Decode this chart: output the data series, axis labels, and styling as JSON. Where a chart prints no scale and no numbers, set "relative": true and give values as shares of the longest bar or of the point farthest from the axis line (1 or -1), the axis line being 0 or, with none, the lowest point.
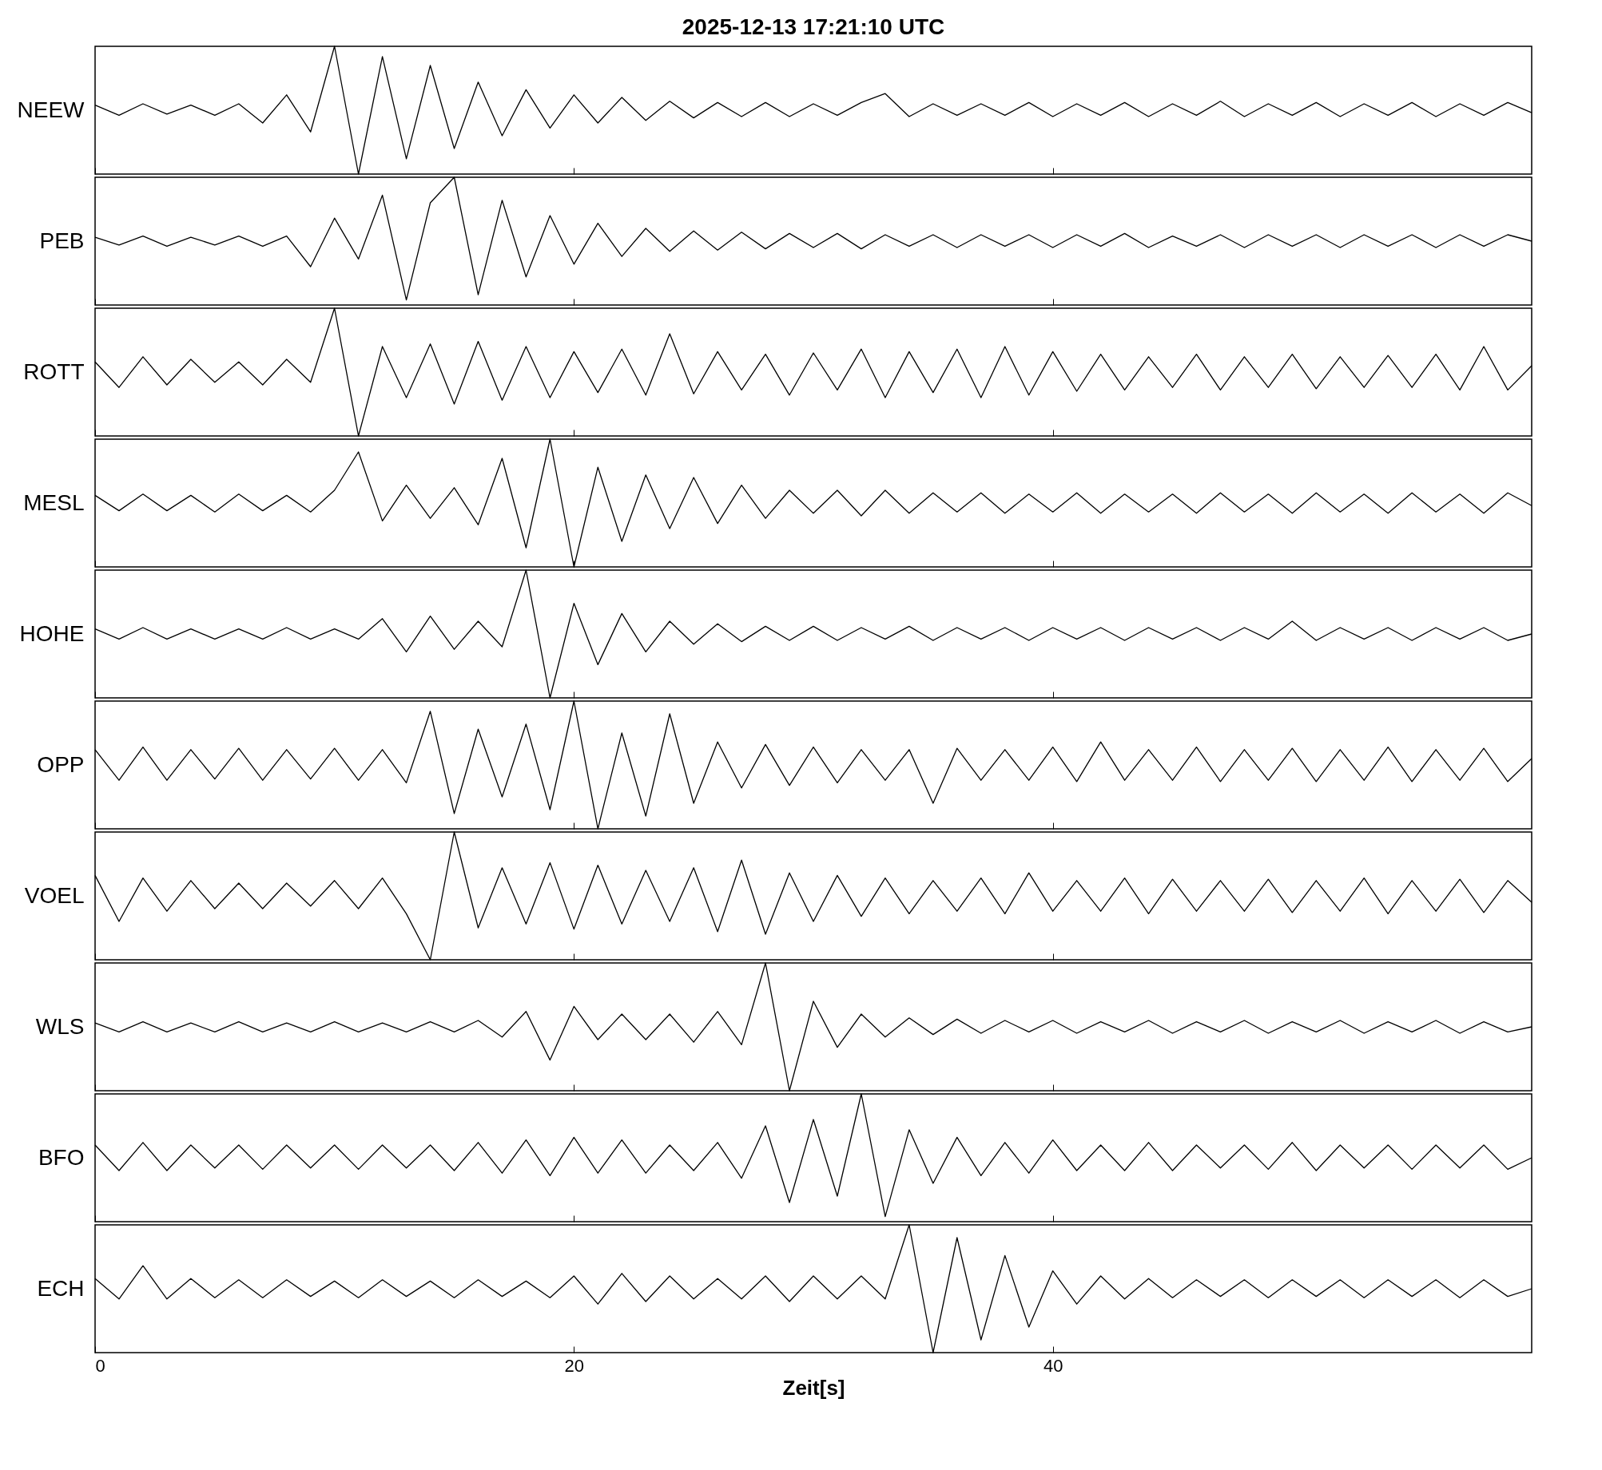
{
  "chart_data": [
    {
      "type": "line",
      "title": "2025-12-13  17:21:10 UTC",
      "ylabel": "NEEW",
      "relative": true,
      "tick_labels": false,
      "xlim": [
        0,
        60
      ],
      "xticks": [
        0,
        20,
        40
      ],
      "x": [
        0,
        1,
        2,
        3,
        4,
        5,
        6,
        7,
        8,
        9,
        10,
        11,
        12,
        13,
        14,
        15,
        16,
        17,
        18,
        19,
        20,
        21,
        22,
        23,
        24,
        25,
        26,
        27,
        28,
        29,
        30,
        31,
        32,
        33,
        34,
        35,
        36,
        37,
        38,
        39,
        40,
        41,
        42,
        43,
        44,
        45,
        46,
        47,
        48,
        49,
        50,
        51,
        52,
        53,
        54,
        55,
        56,
        57,
        58,
        59,
        60
      ],
      "series": [
        {
          "color": "#000000",
          "values": [
            0.54,
            0.46,
            0.55,
            0.47,
            0.54,
            0.46,
            0.55,
            0.4,
            0.62,
            0.33,
            1.0,
            0.0,
            0.92,
            0.12,
            0.85,
            0.2,
            0.72,
            0.3,
            0.66,
            0.36,
            0.62,
            0.4,
            0.6,
            0.42,
            0.57,
            0.44,
            0.56,
            0.45,
            0.56,
            0.45,
            0.55,
            0.46,
            0.56,
            0.63,
            0.45,
            0.55,
            0.46,
            0.55,
            0.46,
            0.56,
            0.45,
            0.55,
            0.46,
            0.56,
            0.45,
            0.55,
            0.46,
            0.57,
            0.45,
            0.55,
            0.46,
            0.56,
            0.45,
            0.55,
            0.46,
            0.56,
            0.45,
            0.55,
            0.46,
            0.56,
            0.48
          ]
        }
      ]
    },
    {
      "type": "line",
      "ylabel": "PEB",
      "relative": true,
      "tick_labels": false,
      "xlim": [
        0,
        60
      ],
      "xticks": [
        0,
        20,
        40
      ],
      "x": [
        0,
        1,
        2,
        3,
        4,
        5,
        6,
        7,
        8,
        9,
        10,
        11,
        12,
        13,
        14,
        15,
        16,
        17,
        18,
        19,
        20,
        21,
        22,
        23,
        24,
        25,
        26,
        27,
        28,
        29,
        30,
        31,
        32,
        33,
        34,
        35,
        36,
        37,
        38,
        39,
        40,
        41,
        42,
        43,
        44,
        45,
        46,
        47,
        48,
        49,
        50,
        51,
        52,
        53,
        54,
        55,
        56,
        57,
        58,
        59,
        60
      ],
      "series": [
        {
          "color": "#000000",
          "values": [
            0.53,
            0.47,
            0.54,
            0.46,
            0.53,
            0.47,
            0.54,
            0.46,
            0.54,
            0.3,
            0.68,
            0.36,
            0.86,
            0.04,
            0.8,
            1.0,
            0.08,
            0.82,
            0.22,
            0.7,
            0.32,
            0.64,
            0.38,
            0.6,
            0.42,
            0.58,
            0.43,
            0.57,
            0.44,
            0.56,
            0.45,
            0.56,
            0.44,
            0.55,
            0.46,
            0.55,
            0.45,
            0.55,
            0.46,
            0.55,
            0.45,
            0.55,
            0.46,
            0.56,
            0.45,
            0.54,
            0.46,
            0.55,
            0.45,
            0.55,
            0.46,
            0.55,
            0.45,
            0.55,
            0.46,
            0.55,
            0.45,
            0.55,
            0.46,
            0.55,
            0.5
          ]
        }
      ]
    },
    {
      "type": "line",
      "ylabel": "ROTT",
      "relative": true,
      "tick_labels": false,
      "xlim": [
        0,
        60
      ],
      "xticks": [
        0,
        20,
        40
      ],
      "x": [
        0,
        1,
        2,
        3,
        4,
        5,
        6,
        7,
        8,
        9,
        10,
        11,
        12,
        13,
        14,
        15,
        16,
        17,
        18,
        19,
        20,
        21,
        22,
        23,
        24,
        25,
        26,
        27,
        28,
        29,
        30,
        31,
        32,
        33,
        34,
        35,
        36,
        37,
        38,
        39,
        40,
        41,
        42,
        43,
        44,
        45,
        46,
        47,
        48,
        49,
        50,
        51,
        52,
        53,
        54,
        55,
        56,
        57,
        58,
        59,
        60
      ],
      "series": [
        {
          "color": "#000000",
          "values": [
            0.58,
            0.38,
            0.62,
            0.4,
            0.6,
            0.42,
            0.58,
            0.4,
            0.6,
            0.42,
            1.0,
            0.0,
            0.7,
            0.3,
            0.72,
            0.25,
            0.74,
            0.28,
            0.7,
            0.3,
            0.66,
            0.34,
            0.68,
            0.32,
            0.8,
            0.33,
            0.66,
            0.36,
            0.64,
            0.32,
            0.65,
            0.36,
            0.68,
            0.3,
            0.66,
            0.34,
            0.68,
            0.3,
            0.7,
            0.32,
            0.66,
            0.35,
            0.64,
            0.36,
            0.62,
            0.38,
            0.64,
            0.36,
            0.62,
            0.38,
            0.64,
            0.37,
            0.62,
            0.38,
            0.63,
            0.38,
            0.64,
            0.36,
            0.7,
            0.36,
            0.55
          ]
        }
      ]
    },
    {
      "type": "line",
      "ylabel": "MESL",
      "relative": true,
      "tick_labels": false,
      "xlim": [
        0,
        60
      ],
      "xticks": [
        0,
        20,
        40
      ],
      "x": [
        0,
        1,
        2,
        3,
        4,
        5,
        6,
        7,
        8,
        9,
        10,
        11,
        12,
        13,
        14,
        15,
        16,
        17,
        18,
        19,
        20,
        21,
        22,
        23,
        24,
        25,
        26,
        27,
        28,
        29,
        30,
        31,
        32,
        33,
        34,
        35,
        36,
        37,
        38,
        39,
        40,
        41,
        42,
        43,
        44,
        45,
        46,
        47,
        48,
        49,
        50,
        51,
        52,
        53,
        54,
        55,
        56,
        57,
        58,
        59,
        60
      ],
      "series": [
        {
          "color": "#000000",
          "values": [
            0.56,
            0.44,
            0.57,
            0.44,
            0.56,
            0.43,
            0.57,
            0.44,
            0.56,
            0.43,
            0.6,
            0.9,
            0.36,
            0.64,
            0.38,
            0.62,
            0.33,
            0.85,
            0.15,
            1.0,
            0.0,
            0.78,
            0.2,
            0.72,
            0.3,
            0.7,
            0.34,
            0.64,
            0.38,
            0.6,
            0.42,
            0.6,
            0.4,
            0.6,
            0.42,
            0.58,
            0.43,
            0.58,
            0.42,
            0.57,
            0.43,
            0.58,
            0.42,
            0.57,
            0.43,
            0.57,
            0.42,
            0.58,
            0.43,
            0.57,
            0.42,
            0.58,
            0.43,
            0.57,
            0.42,
            0.58,
            0.43,
            0.57,
            0.42,
            0.58,
            0.48
          ]
        }
      ]
    },
    {
      "type": "line",
      "ylabel": "HOHE",
      "relative": true,
      "tick_labels": false,
      "xlim": [
        0,
        60
      ],
      "xticks": [
        0,
        20,
        40
      ],
      "x": [
        0,
        1,
        2,
        3,
        4,
        5,
        6,
        7,
        8,
        9,
        10,
        11,
        12,
        13,
        14,
        15,
        16,
        17,
        18,
        19,
        20,
        21,
        22,
        23,
        24,
        25,
        26,
        27,
        28,
        29,
        30,
        31,
        32,
        33,
        34,
        35,
        36,
        37,
        38,
        39,
        40,
        41,
        42,
        43,
        44,
        45,
        46,
        47,
        48,
        49,
        50,
        51,
        52,
        53,
        54,
        55,
        56,
        57,
        58,
        59,
        60
      ],
      "series": [
        {
          "color": "#000000",
          "values": [
            0.54,
            0.46,
            0.55,
            0.46,
            0.54,
            0.46,
            0.54,
            0.46,
            0.55,
            0.46,
            0.54,
            0.46,
            0.62,
            0.36,
            0.64,
            0.38,
            0.6,
            0.4,
            1.0,
            0.0,
            0.74,
            0.26,
            0.66,
            0.36,
            0.6,
            0.42,
            0.58,
            0.44,
            0.56,
            0.45,
            0.56,
            0.45,
            0.55,
            0.46,
            0.56,
            0.45,
            0.55,
            0.46,
            0.55,
            0.45,
            0.55,
            0.46,
            0.55,
            0.45,
            0.55,
            0.46,
            0.55,
            0.45,
            0.55,
            0.46,
            0.6,
            0.45,
            0.55,
            0.46,
            0.55,
            0.45,
            0.55,
            0.46,
            0.55,
            0.45,
            0.5
          ]
        }
      ]
    },
    {
      "type": "line",
      "ylabel": "OPP",
      "relative": true,
      "tick_labels": false,
      "xlim": [
        0,
        60
      ],
      "xticks": [
        0,
        20,
        40
      ],
      "x": [
        0,
        1,
        2,
        3,
        4,
        5,
        6,
        7,
        8,
        9,
        10,
        11,
        12,
        13,
        14,
        15,
        16,
        17,
        18,
        19,
        20,
        21,
        22,
        23,
        24,
        25,
        26,
        27,
        28,
        29,
        30,
        31,
        32,
        33,
        34,
        35,
        36,
        37,
        38,
        39,
        40,
        41,
        42,
        43,
        44,
        45,
        46,
        47,
        48,
        49,
        50,
        51,
        52,
        53,
        54,
        55,
        56,
        57,
        58,
        59,
        60
      ],
      "series": [
        {
          "color": "#000000",
          "values": [
            0.62,
            0.38,
            0.64,
            0.38,
            0.62,
            0.39,
            0.63,
            0.38,
            0.62,
            0.39,
            0.63,
            0.38,
            0.62,
            0.36,
            0.92,
            0.12,
            0.78,
            0.25,
            0.82,
            0.15,
            1.0,
            0.0,
            0.75,
            0.1,
            0.9,
            0.2,
            0.68,
            0.32,
            0.66,
            0.34,
            0.64,
            0.36,
            0.62,
            0.38,
            0.62,
            0.2,
            0.63,
            0.38,
            0.62,
            0.38,
            0.64,
            0.37,
            0.68,
            0.38,
            0.62,
            0.38,
            0.64,
            0.37,
            0.62,
            0.38,
            0.63,
            0.37,
            0.62,
            0.38,
            0.64,
            0.37,
            0.62,
            0.38,
            0.63,
            0.37,
            0.55
          ]
        }
      ]
    },
    {
      "type": "line",
      "ylabel": "VOEL",
      "relative": true,
      "tick_labels": false,
      "xlim": [
        0,
        60
      ],
      "xticks": [
        0,
        20,
        40
      ],
      "x": [
        0,
        1,
        2,
        3,
        4,
        5,
        6,
        7,
        8,
        9,
        10,
        11,
        12,
        13,
        14,
        15,
        16,
        17,
        18,
        19,
        20,
        21,
        22,
        23,
        24,
        25,
        26,
        27,
        28,
        29,
        30,
        31,
        32,
        33,
        34,
        35,
        36,
        37,
        38,
        39,
        40,
        41,
        42,
        43,
        44,
        45,
        46,
        47,
        48,
        49,
        50,
        51,
        52,
        53,
        54,
        55,
        56,
        57,
        58,
        59,
        60
      ],
      "series": [
        {
          "color": "#000000",
          "values": [
            0.66,
            0.3,
            0.64,
            0.38,
            0.62,
            0.4,
            0.6,
            0.4,
            0.6,
            0.42,
            0.62,
            0.4,
            0.64,
            0.36,
            0.0,
            1.0,
            0.25,
            0.72,
            0.28,
            0.76,
            0.24,
            0.74,
            0.28,
            0.7,
            0.3,
            0.72,
            0.22,
            0.78,
            0.2,
            0.68,
            0.3,
            0.66,
            0.34,
            0.64,
            0.36,
            0.62,
            0.38,
            0.64,
            0.36,
            0.68,
            0.38,
            0.62,
            0.38,
            0.64,
            0.36,
            0.63,
            0.38,
            0.62,
            0.38,
            0.63,
            0.37,
            0.62,
            0.38,
            0.64,
            0.36,
            0.62,
            0.38,
            0.63,
            0.37,
            0.62,
            0.45
          ]
        }
      ]
    },
    {
      "type": "line",
      "ylabel": "WLS",
      "relative": true,
      "tick_labels": false,
      "xlim": [
        0,
        60
      ],
      "xticks": [
        0,
        20,
        40
      ],
      "x": [
        0,
        1,
        2,
        3,
        4,
        5,
        6,
        7,
        8,
        9,
        10,
        11,
        12,
        13,
        14,
        15,
        16,
        17,
        18,
        19,
        20,
        21,
        22,
        23,
        24,
        25,
        26,
        27,
        28,
        29,
        30,
        31,
        32,
        33,
        34,
        35,
        36,
        37,
        38,
        39,
        40,
        41,
        42,
        43,
        44,
        45,
        46,
        47,
        48,
        49,
        50,
        51,
        52,
        53,
        54,
        55,
        56,
        57,
        58,
        59,
        60
      ],
      "series": [
        {
          "color": "#000000",
          "values": [
            0.53,
            0.46,
            0.54,
            0.46,
            0.53,
            0.46,
            0.54,
            0.46,
            0.53,
            0.46,
            0.54,
            0.46,
            0.53,
            0.46,
            0.54,
            0.46,
            0.55,
            0.42,
            0.62,
            0.24,
            0.66,
            0.4,
            0.6,
            0.4,
            0.6,
            0.38,
            0.62,
            0.36,
            1.0,
            0.0,
            0.7,
            0.34,
            0.6,
            0.42,
            0.57,
            0.44,
            0.56,
            0.45,
            0.55,
            0.46,
            0.55,
            0.45,
            0.54,
            0.46,
            0.55,
            0.45,
            0.54,
            0.46,
            0.55,
            0.45,
            0.54,
            0.46,
            0.55,
            0.45,
            0.54,
            0.46,
            0.55,
            0.45,
            0.54,
            0.46,
            0.5
          ]
        }
      ]
    },
    {
      "type": "line",
      "ylabel": "BFO",
      "relative": true,
      "tick_labels": false,
      "xlim": [
        0,
        60
      ],
      "xticks": [
        0,
        20,
        40
      ],
      "x": [
        0,
        1,
        2,
        3,
        4,
        5,
        6,
        7,
        8,
        9,
        10,
        11,
        12,
        13,
        14,
        15,
        16,
        17,
        18,
        19,
        20,
        21,
        22,
        23,
        24,
        25,
        26,
        27,
        28,
        29,
        30,
        31,
        32,
        33,
        34,
        35,
        36,
        37,
        38,
        39,
        40,
        41,
        42,
        43,
        44,
        45,
        46,
        47,
        48,
        49,
        50,
        51,
        52,
        53,
        54,
        55,
        56,
        57,
        58,
        59,
        60
      ],
      "series": [
        {
          "color": "#000000",
          "values": [
            0.6,
            0.4,
            0.62,
            0.4,
            0.6,
            0.42,
            0.6,
            0.41,
            0.6,
            0.42,
            0.6,
            0.41,
            0.6,
            0.42,
            0.6,
            0.4,
            0.62,
            0.38,
            0.64,
            0.36,
            0.66,
            0.38,
            0.64,
            0.38,
            0.6,
            0.4,
            0.62,
            0.34,
            0.75,
            0.15,
            0.8,
            0.2,
            1.0,
            0.04,
            0.72,
            0.3,
            0.66,
            0.36,
            0.62,
            0.38,
            0.64,
            0.4,
            0.6,
            0.4,
            0.62,
            0.4,
            0.6,
            0.42,
            0.6,
            0.41,
            0.62,
            0.4,
            0.6,
            0.42,
            0.6,
            0.41,
            0.6,
            0.42,
            0.6,
            0.41,
            0.5
          ]
        }
      ]
    },
    {
      "type": "line",
      "ylabel": "ECH",
      "relative": true,
      "tick_labels": "x",
      "xlabel": "Zeit[s]",
      "xlim": [
        0,
        60
      ],
      "xticks": [
        0,
        20,
        40
      ],
      "x": [
        0,
        1,
        2,
        3,
        4,
        5,
        6,
        7,
        8,
        9,
        10,
        11,
        12,
        13,
        14,
        15,
        16,
        17,
        18,
        19,
        20,
        21,
        22,
        23,
        24,
        25,
        26,
        27,
        28,
        29,
        30,
        31,
        32,
        33,
        34,
        35,
        36,
        37,
        38,
        39,
        40,
        41,
        42,
        43,
        44,
        45,
        46,
        47,
        48,
        49,
        50,
        51,
        52,
        53,
        54,
        55,
        56,
        57,
        58,
        59,
        60
      ],
      "series": [
        {
          "color": "#000000",
          "values": [
            0.58,
            0.42,
            0.68,
            0.42,
            0.58,
            0.43,
            0.57,
            0.43,
            0.57,
            0.44,
            0.56,
            0.43,
            0.57,
            0.44,
            0.56,
            0.43,
            0.57,
            0.44,
            0.56,
            0.43,
            0.6,
            0.38,
            0.62,
            0.4,
            0.6,
            0.42,
            0.58,
            0.42,
            0.6,
            0.4,
            0.6,
            0.42,
            0.6,
            0.42,
            1.0,
            0.0,
            0.9,
            0.1,
            0.76,
            0.2,
            0.64,
            0.38,
            0.6,
            0.42,
            0.58,
            0.43,
            0.57,
            0.44,
            0.57,
            0.43,
            0.57,
            0.44,
            0.57,
            0.43,
            0.57,
            0.44,
            0.57,
            0.43,
            0.57,
            0.44,
            0.5
          ]
        }
      ]
    }
  ]
}
